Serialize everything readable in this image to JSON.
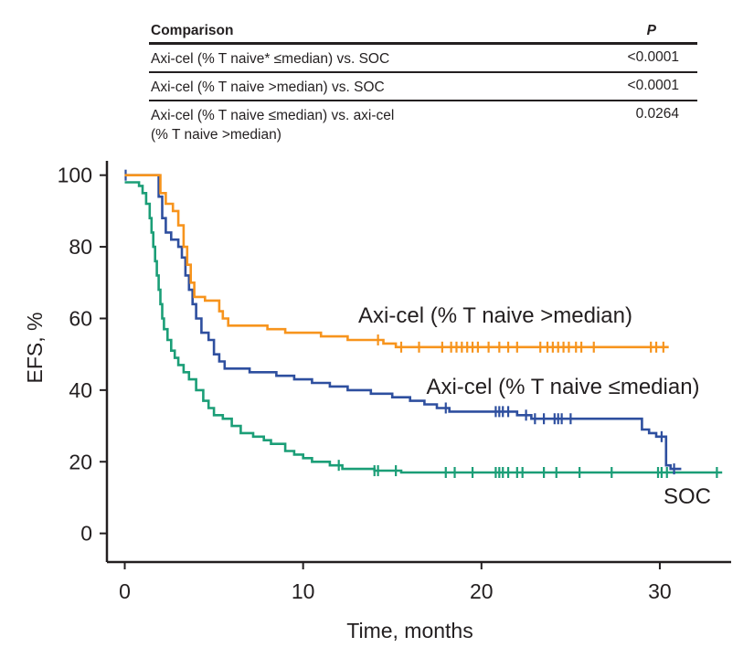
{
  "table": {
    "headers": [
      "Comparison",
      "P"
    ],
    "rows": [
      {
        "comparison": "Axi-cel (% T naive* ≤median) vs. SOC",
        "p": "<0.0001"
      },
      {
        "comparison": "Axi-cel (% T naive >median) vs. SOC",
        "p": "<0.0001"
      },
      {
        "comparison_line1": "Axi-cel (% T naive ≤median) vs. axi-cel",
        "comparison_line2": "(% T naive >median)",
        "p": "0.0264"
      }
    ]
  },
  "chart_data": {
    "type": "line",
    "subtype": "kaplan-meier step curves with censor marks",
    "xlabel": "Time, months",
    "ylabel": "EFS, %",
    "xlim": [
      -1,
      34
    ],
    "ylim": [
      -8,
      104
    ],
    "xticks": [
      0,
      10,
      20,
      30
    ],
    "yticks": [
      0,
      20,
      40,
      60,
      80,
      100
    ],
    "grid": false,
    "series": [
      {
        "name": "Axi-cel (% T naive >median)",
        "color": "#f7941d",
        "points": [
          [
            0,
            100
          ],
          [
            1.8,
            100
          ],
          [
            2.0,
            95
          ],
          [
            2.3,
            92
          ],
          [
            2.7,
            90
          ],
          [
            3.0,
            86
          ],
          [
            3.3,
            80
          ],
          [
            3.5,
            75
          ],
          [
            3.7,
            70
          ],
          [
            3.9,
            66
          ],
          [
            4.5,
            65
          ],
          [
            5.3,
            62
          ],
          [
            5.5,
            60
          ],
          [
            5.8,
            58
          ],
          [
            8.0,
            57
          ],
          [
            9.0,
            56
          ],
          [
            11.0,
            55
          ],
          [
            12.5,
            54
          ],
          [
            14.5,
            53
          ],
          [
            15.2,
            52
          ],
          [
            30.5,
            52
          ]
        ],
        "censor_x": [
          14.2,
          15.5,
          16.5,
          17.8,
          18.3,
          18.6,
          18.9,
          19.2,
          19.5,
          19.8,
          20.4,
          21.0,
          21.5,
          22.0,
          23.3,
          23.7,
          24.0,
          24.3,
          24.6,
          24.9,
          25.3,
          25.6,
          26.3,
          29.5,
          29.8,
          30.2
        ]
      },
      {
        "name": "Axi-cel (% T naive ≤median)",
        "color": "#2e4f9f",
        "points": [
          [
            0,
            100
          ],
          [
            1.7,
            100
          ],
          [
            1.9,
            94
          ],
          [
            2.1,
            88
          ],
          [
            2.3,
            84
          ],
          [
            2.6,
            82
          ],
          [
            3.0,
            80
          ],
          [
            3.2,
            77
          ],
          [
            3.4,
            72
          ],
          [
            3.6,
            68
          ],
          [
            3.8,
            64
          ],
          [
            4.0,
            60
          ],
          [
            4.3,
            56
          ],
          [
            4.7,
            54
          ],
          [
            5.0,
            50
          ],
          [
            5.3,
            48
          ],
          [
            5.6,
            46
          ],
          [
            7.0,
            45
          ],
          [
            8.5,
            44
          ],
          [
            9.5,
            43
          ],
          [
            10.5,
            42
          ],
          [
            11.5,
            41
          ],
          [
            12.5,
            40
          ],
          [
            13.8,
            39
          ],
          [
            15.0,
            38
          ],
          [
            16.0,
            37
          ],
          [
            16.8,
            36
          ],
          [
            17.5,
            35
          ],
          [
            18.2,
            34
          ],
          [
            22.0,
            33
          ],
          [
            22.8,
            32
          ],
          [
            24.8,
            32
          ],
          [
            28.8,
            32
          ],
          [
            29.0,
            29
          ],
          [
            29.4,
            28
          ],
          [
            29.8,
            27
          ],
          [
            30.3,
            27
          ],
          [
            30.35,
            19
          ],
          [
            30.6,
            18
          ],
          [
            31.2,
            18
          ]
        ],
        "censor_x": [
          0.05,
          18.0,
          20.8,
          21.0,
          21.2,
          21.5,
          22.5,
          23.0,
          23.5,
          24.1,
          24.3,
          24.5,
          25.0,
          30.1,
          30.8
        ]
      },
      {
        "name": "SOC",
        "color": "#1b9e77",
        "points": [
          [
            0,
            98
          ],
          [
            0.8,
            97
          ],
          [
            1.0,
            95
          ],
          [
            1.2,
            92
          ],
          [
            1.4,
            88
          ],
          [
            1.5,
            84
          ],
          [
            1.6,
            80
          ],
          [
            1.7,
            76
          ],
          [
            1.8,
            72
          ],
          [
            1.9,
            68
          ],
          [
            2.0,
            64
          ],
          [
            2.1,
            60
          ],
          [
            2.2,
            57
          ],
          [
            2.4,
            54
          ],
          [
            2.6,
            51
          ],
          [
            2.8,
            49
          ],
          [
            3.0,
            47
          ],
          [
            3.3,
            45
          ],
          [
            3.6,
            43
          ],
          [
            4.0,
            40
          ],
          [
            4.4,
            37
          ],
          [
            4.7,
            35
          ],
          [
            5.0,
            33
          ],
          [
            5.5,
            32
          ],
          [
            6.0,
            30
          ],
          [
            6.5,
            28
          ],
          [
            7.2,
            27
          ],
          [
            7.8,
            26
          ],
          [
            8.2,
            25
          ],
          [
            9.0,
            23
          ],
          [
            9.5,
            22
          ],
          [
            10.0,
            21
          ],
          [
            10.5,
            20
          ],
          [
            11.5,
            19
          ],
          [
            12.2,
            18
          ],
          [
            14.0,
            17.5
          ],
          [
            15.5,
            17
          ],
          [
            33.5,
            17
          ]
        ],
        "censor_x": [
          12.0,
          14.0,
          14.2,
          15.2,
          18.0,
          18.5,
          19.5,
          20.8,
          21.0,
          21.2,
          21.5,
          22.0,
          22.3,
          23.5,
          24.2,
          25.5,
          27.3,
          29.9,
          30.1,
          30.4,
          33.2
        ]
      }
    ],
    "annotations": [
      {
        "text": "Axi-cel (% T naive >median)",
        "series": 0
      },
      {
        "text": "Axi-cel (% T naive ≤median)",
        "series": 1
      },
      {
        "text": "SOC",
        "series": 2
      }
    ]
  }
}
